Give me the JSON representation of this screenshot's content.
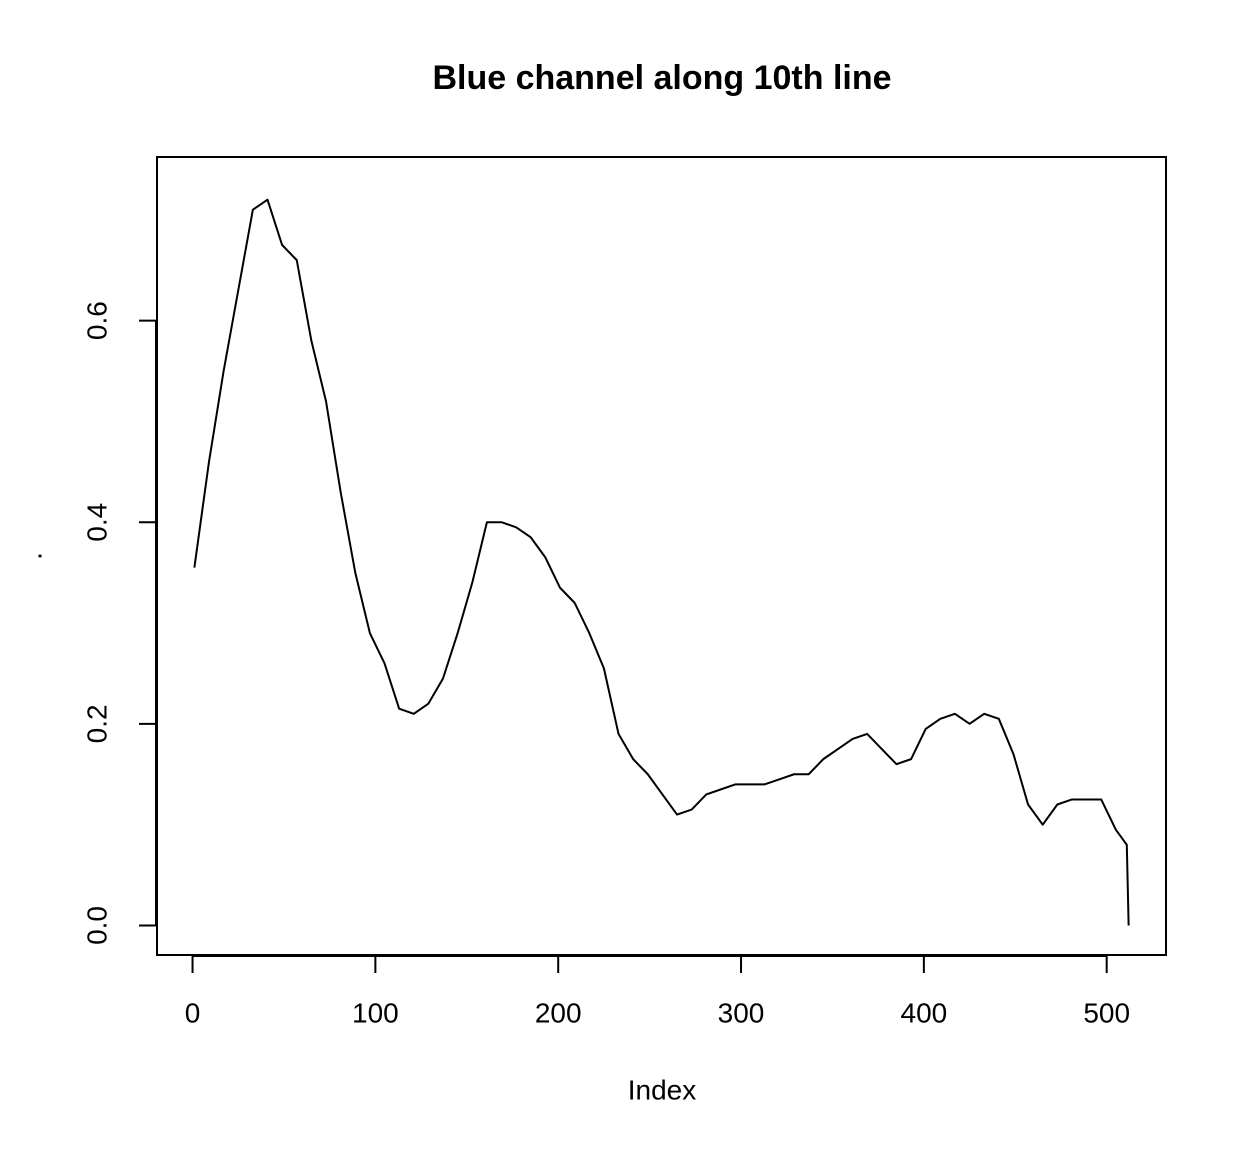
{
  "chart_data": {
    "type": "line",
    "title": "Blue channel along 10th line",
    "x_label": "Index",
    "y_label": ".",
    "x": [
      1,
      9,
      17,
      25,
      33,
      41,
      49,
      57,
      65,
      73,
      81,
      89,
      97,
      105,
      113,
      121,
      129,
      137,
      145,
      153,
      161,
      169,
      177,
      185,
      193,
      201,
      209,
      217,
      225,
      233,
      241,
      249,
      257,
      265,
      273,
      281,
      289,
      297,
      305,
      313,
      321,
      329,
      337,
      345,
      353,
      361,
      369,
      377,
      385,
      393,
      401,
      409,
      417,
      425,
      433,
      441,
      449,
      457,
      465,
      473,
      481,
      489,
      497,
      505,
      511,
      512
    ],
    "series": [
      {
        "color": "#000000",
        "values": [
          0.355,
          0.46,
          0.55,
          0.63,
          0.71,
          0.72,
          0.675,
          0.66,
          0.58,
          0.52,
          0.43,
          0.35,
          0.29,
          0.26,
          0.215,
          0.21,
          0.22,
          0.245,
          0.29,
          0.34,
          0.4,
          0.4,
          0.395,
          0.385,
          0.365,
          0.335,
          0.32,
          0.29,
          0.255,
          0.19,
          0.165,
          0.15,
          0.13,
          0.11,
          0.115,
          0.13,
          0.135,
          0.14,
          0.14,
          0.14,
          0.145,
          0.15,
          0.15,
          0.165,
          0.175,
          0.185,
          0.19,
          0.175,
          0.16,
          0.165,
          0.195,
          0.205,
          0.21,
          0.2,
          0.21,
          0.205,
          0.17,
          0.12,
          0.1,
          0.12,
          0.125,
          0.125,
          0.125,
          0.095,
          0.08,
          0.0
        ]
      }
    ],
    "xlim": [
      -19.44,
      532.44
    ],
    "ylim": [
      -0.0293,
      0.7623
    ],
    "xticks": [
      0,
      100,
      200,
      300,
      400,
      500
    ],
    "yticks": [
      {
        "value": 0,
        "label": "0.0"
      },
      0.2,
      0.4,
      0.6
    ]
  }
}
